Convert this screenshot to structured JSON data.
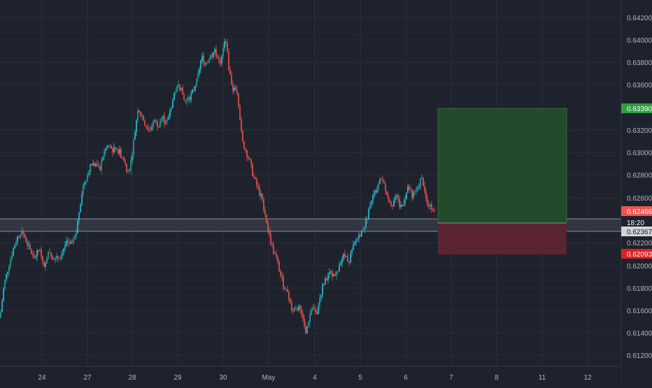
{
  "colors": {
    "background": "#1e222d",
    "grid": "#2a2e39",
    "axis_text": "#b2b5be",
    "axis_line": "#363a45",
    "candle_up": "#26a69a",
    "candle_up_alt": "#1ec8e1",
    "candle_down": "#ef5350",
    "zone_fill": "#3a3d48",
    "zone_border": "#c9ccd6",
    "profit_fill": "#244a2c",
    "profit_border": "#2e7d32",
    "loss_fill": "#5a2430",
    "target_badge": "#2e9e3e",
    "price_badge": "#ef5350",
    "stop_badge": "#e0201f",
    "level_badge": "#d1d4dc"
  },
  "price_axis": {
    "ticks": [
      "0.64200",
      "0.64000",
      "0.63800",
      "0.63600",
      "0.63200",
      "0.63000",
      "0.62800",
      "0.62600",
      "0.62200",
      "0.62000",
      "0.61800",
      "0.61600",
      "0.61400",
      "0.61200"
    ]
  },
  "time_axis": {
    "labels": [
      "24",
      "27",
      "28",
      "29",
      "30",
      "May",
      "4",
      "5",
      "6",
      "7",
      "8",
      "11",
      "12"
    ]
  },
  "badges": {
    "target": "0.63390",
    "price": "0.62466",
    "countdown": "18:20",
    "level": "0.62367",
    "stop": "0.62093"
  },
  "chart_data": {
    "type": "candlestick",
    "symbol": "",
    "y_range": [
      0.6107,
      0.6441
    ],
    "x_labels": [
      "24",
      "27",
      "28",
      "29",
      "30",
      "May",
      "4",
      "5",
      "6",
      "7",
      "8",
      "11",
      "12"
    ],
    "close_path": [
      [
        0,
        0.6155
      ],
      [
        6,
        0.6185
      ],
      [
        14,
        0.6205
      ],
      [
        22,
        0.6222
      ],
      [
        30,
        0.6232
      ],
      [
        36,
        0.6225
      ],
      [
        42,
        0.6215
      ],
      [
        50,
        0.6208
      ],
      [
        56,
        0.6215
      ],
      [
        62,
        0.62
      ],
      [
        70,
        0.6215
      ],
      [
        78,
        0.6205
      ],
      [
        86,
        0.621
      ],
      [
        94,
        0.622
      ],
      [
        102,
        0.622
      ],
      [
        108,
        0.6225
      ],
      [
        112,
        0.6245
      ],
      [
        118,
        0.627
      ],
      [
        124,
        0.628
      ],
      [
        130,
        0.629
      ],
      [
        136,
        0.629
      ],
      [
        142,
        0.6285
      ],
      [
        148,
        0.63
      ],
      [
        154,
        0.6307
      ],
      [
        160,
        0.6303
      ],
      [
        166,
        0.6305
      ],
      [
        172,
        0.63
      ],
      [
        178,
        0.6292
      ],
      [
        182,
        0.6285
      ],
      [
        186,
        0.6288
      ],
      [
        192,
        0.6315
      ],
      [
        197,
        0.634
      ],
      [
        202,
        0.6335
      ],
      [
        208,
        0.6325
      ],
      [
        214,
        0.632
      ],
      [
        220,
        0.633
      ],
      [
        226,
        0.6325
      ],
      [
        232,
        0.6332
      ],
      [
        238,
        0.6325
      ],
      [
        244,
        0.634
      ],
      [
        250,
        0.6355
      ],
      [
        256,
        0.636
      ],
      [
        262,
        0.635
      ],
      [
        266,
        0.6345
      ],
      [
        270,
        0.6348
      ],
      [
        276,
        0.6355
      ],
      [
        282,
        0.6365
      ],
      [
        288,
        0.6385
      ],
      [
        294,
        0.638
      ],
      [
        300,
        0.6385
      ],
      [
        306,
        0.639
      ],
      [
        312,
        0.6385
      ],
      [
        316,
        0.638
      ],
      [
        320,
        0.6395
      ],
      [
        323,
        0.64
      ],
      [
        326,
        0.638
      ],
      [
        330,
        0.6365
      ],
      [
        334,
        0.6355
      ],
      [
        338,
        0.636
      ],
      [
        342,
        0.634
      ],
      [
        346,
        0.631
      ],
      [
        350,
        0.6305
      ],
      [
        356,
        0.6295
      ],
      [
        362,
        0.628
      ],
      [
        368,
        0.627
      ],
      [
        374,
        0.626
      ],
      [
        378,
        0.625
      ],
      [
        384,
        0.623
      ],
      [
        390,
        0.6215
      ],
      [
        396,
        0.6205
      ],
      [
        402,
        0.619
      ],
      [
        408,
        0.618
      ],
      [
        414,
        0.617
      ],
      [
        418,
        0.6162
      ],
      [
        424,
        0.6165
      ],
      [
        430,
        0.616
      ],
      [
        434,
        0.6155
      ],
      [
        437,
        0.614
      ],
      [
        440,
        0.615
      ],
      [
        446,
        0.6165
      ],
      [
        452,
        0.6158
      ],
      [
        456,
        0.617
      ],
      [
        462,
        0.6185
      ],
      [
        468,
        0.619
      ],
      [
        474,
        0.6195
      ],
      [
        480,
        0.619
      ],
      [
        486,
        0.6205
      ],
      [
        492,
        0.621
      ],
      [
        498,
        0.6205
      ],
      [
        504,
        0.6215
      ],
      [
        510,
        0.6225
      ],
      [
        516,
        0.623
      ],
      [
        522,
        0.6238
      ],
      [
        528,
        0.625
      ],
      [
        534,
        0.6265
      ],
      [
        540,
        0.627
      ],
      [
        546,
        0.628
      ],
      [
        550,
        0.627
      ],
      [
        556,
        0.626
      ],
      [
        560,
        0.6255
      ],
      [
        566,
        0.6262
      ],
      [
        572,
        0.6252
      ],
      [
        578,
        0.626
      ],
      [
        584,
        0.627
      ],
      [
        590,
        0.6262
      ],
      [
        596,
        0.6268
      ],
      [
        602,
        0.6278
      ],
      [
        606,
        0.6272
      ],
      [
        610,
        0.6255
      ],
      [
        614,
        0.6252
      ],
      [
        618,
        0.6253
      ],
      [
        622,
        0.6247
      ]
    ],
    "support_zone": [
      0.62367,
      0.6247
    ],
    "long_position": {
      "entry": 0.62367,
      "target": 0.6339,
      "stop": 0.62093
    }
  }
}
